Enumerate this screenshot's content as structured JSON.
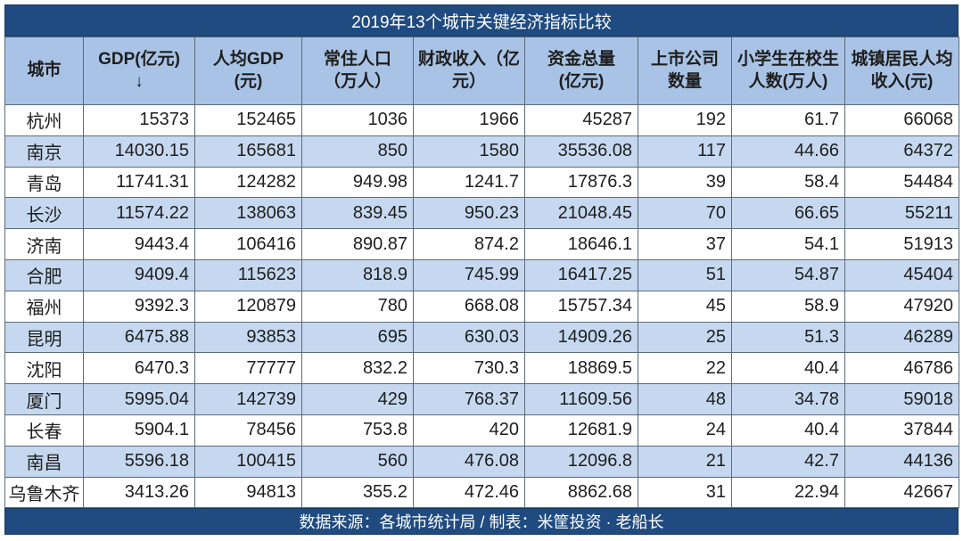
{
  "title": "2019年13个城市关键经济指标比较",
  "colors": {
    "title_bar": "#1f4b80",
    "header": "#a8c3e5",
    "alt_row": "#c6d8f0"
  },
  "columns": [
    "城市",
    "GDP(亿元)\n↓",
    "人均GDP\n(元)",
    "常住人口\n（万人）",
    "财政收入（亿\n元）",
    "资金总量\n(亿元)",
    "上市公司\n数量",
    "小学生在校生\n人数(万人)",
    "城镇居民人均\n收入(元)"
  ],
  "sort_indicator": "GDP(亿元) descending",
  "rows": [
    [
      "杭州",
      "15373",
      "152465",
      "1036",
      "1966",
      "45287",
      "192",
      "61.7",
      "66068"
    ],
    [
      "南京",
      "14030.15",
      "165681",
      "850",
      "1580",
      "35536.08",
      "117",
      "44.66",
      "64372"
    ],
    [
      "青岛",
      "11741.31",
      "124282",
      "949.98",
      "1241.7",
      "17876.3",
      "39",
      "58.4",
      "54484"
    ],
    [
      "长沙",
      "11574.22",
      "138063",
      "839.45",
      "950.23",
      "21048.45",
      "70",
      "66.65",
      "55211"
    ],
    [
      "济南",
      "9443.4",
      "106416",
      "890.87",
      "874.2",
      "18646.1",
      "37",
      "54.1",
      "51913"
    ],
    [
      "合肥",
      "9409.4",
      "115623",
      "818.9",
      "745.99",
      "16417.25",
      "51",
      "54.87",
      "45404"
    ],
    [
      "福州",
      "9392.3",
      "120879",
      "780",
      "668.08",
      "15757.34",
      "45",
      "58.9",
      "47920"
    ],
    [
      "昆明",
      "6475.88",
      "93853",
      "695",
      "630.03",
      "14909.26",
      "25",
      "51.3",
      "46289"
    ],
    [
      "沈阳",
      "6470.3",
      "77777",
      "832.2",
      "730.3",
      "18869.5",
      "22",
      "40.4",
      "46786"
    ],
    [
      "厦门",
      "5995.04",
      "142739",
      "429",
      "768.37",
      "11609.56",
      "48",
      "34.78",
      "59018"
    ],
    [
      "长春",
      "5904.1",
      "78456",
      "753.8",
      "420",
      "12681.9",
      "24",
      "40.4",
      "37844"
    ],
    [
      "南昌",
      "5596.18",
      "100415",
      "560",
      "476.08",
      "12096.8",
      "21",
      "42.7",
      "44136"
    ],
    [
      "乌鲁木齐",
      "3413.26",
      "94813",
      "355.2",
      "472.46",
      "8862.68",
      "31",
      "22.94",
      "42667"
    ]
  ],
  "footer": "数据来源：各城市统计局 / 制表：米筐投资 · 老船长",
  "watermark": "米筐投资"
}
